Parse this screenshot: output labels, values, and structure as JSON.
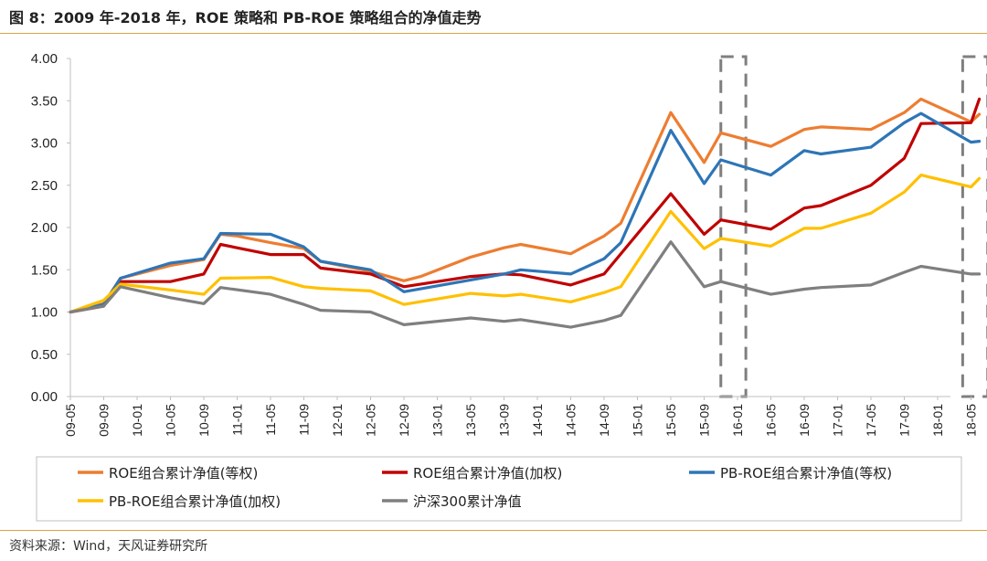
{
  "header": {
    "title": "图 8：2009 年-2018 年，ROE 策略和 PB-ROE 策略组合的净值走势"
  },
  "footer": {
    "source": "资料来源：Wind，天风证券研究所"
  },
  "chart_data": {
    "type": "line",
    "title": "",
    "xlabel": "",
    "ylabel": "",
    "ylim": [
      0,
      4
    ],
    "yticks": [
      "0.00",
      "0.50",
      "1.00",
      "1.50",
      "2.00",
      "2.50",
      "3.00",
      "3.50",
      "4.00"
    ],
    "grid": false,
    "legend_position": "bottom",
    "x_tick_labels": [
      "09-05",
      "09-09",
      "10-01",
      "10-05",
      "10-09",
      "11-01",
      "11-05",
      "11-09",
      "12-01",
      "12-05",
      "12-09",
      "13-01",
      "13-05",
      "13-09",
      "14-01",
      "14-05",
      "14-09",
      "15-01",
      "15-05",
      "15-09",
      "16-01",
      "16-05",
      "16-09",
      "17-01",
      "17-05",
      "17-09",
      "18-01",
      "18-05"
    ],
    "highlight_boxes": [
      {
        "from": "15-11",
        "to": "16-02"
      },
      {
        "from": "18-04",
        "to": "18-07"
      }
    ],
    "series": [
      {
        "name": "ROE组合累计净值(等权)",
        "color": "#ed7d31",
        "points": [
          [
            "09-05",
            1.0
          ],
          [
            "09-09",
            1.1
          ],
          [
            "09-11",
            1.4
          ],
          [
            "10-01",
            1.45
          ],
          [
            "10-05",
            1.55
          ],
          [
            "10-09",
            1.62
          ],
          [
            "10-11",
            1.92
          ],
          [
            "11-01",
            1.9
          ],
          [
            "11-05",
            1.82
          ],
          [
            "11-09",
            1.75
          ],
          [
            "11-11",
            1.6
          ],
          [
            "12-05",
            1.48
          ],
          [
            "12-09",
            1.37
          ],
          [
            "12-11",
            1.42
          ],
          [
            "13-05",
            1.65
          ],
          [
            "13-09",
            1.76
          ],
          [
            "13-11",
            1.8
          ],
          [
            "14-05",
            1.69
          ],
          [
            "14-09",
            1.9
          ],
          [
            "14-11",
            2.05
          ],
          [
            "15-05",
            3.36
          ],
          [
            "15-09",
            2.77
          ],
          [
            "15-11",
            3.12
          ],
          [
            "16-05",
            2.96
          ],
          [
            "16-09",
            3.16
          ],
          [
            "16-11",
            3.19
          ],
          [
            "17-05",
            3.16
          ],
          [
            "17-09",
            3.36
          ],
          [
            "17-11",
            3.52
          ],
          [
            "18-05",
            3.25
          ],
          [
            "18-06",
            3.34
          ]
        ]
      },
      {
        "name": "ROE组合累计净值(加权)",
        "color": "#c00000",
        "points": [
          [
            "09-05",
            1.0
          ],
          [
            "09-09",
            1.07
          ],
          [
            "09-11",
            1.36
          ],
          [
            "10-05",
            1.36
          ],
          [
            "10-09",
            1.45
          ],
          [
            "10-11",
            1.8
          ],
          [
            "11-05",
            1.68
          ],
          [
            "11-09",
            1.68
          ],
          [
            "11-11",
            1.52
          ],
          [
            "12-05",
            1.45
          ],
          [
            "12-09",
            1.3
          ],
          [
            "13-05",
            1.42
          ],
          [
            "13-09",
            1.45
          ],
          [
            "13-11",
            1.44
          ],
          [
            "14-05",
            1.32
          ],
          [
            "14-09",
            1.45
          ],
          [
            "15-05",
            2.4
          ],
          [
            "15-09",
            1.92
          ],
          [
            "15-11",
            2.09
          ],
          [
            "16-05",
            1.98
          ],
          [
            "16-09",
            2.23
          ],
          [
            "16-11",
            2.26
          ],
          [
            "17-05",
            2.5
          ],
          [
            "17-09",
            2.82
          ],
          [
            "17-11",
            3.23
          ],
          [
            "18-05",
            3.24
          ],
          [
            "18-06",
            3.52
          ]
        ]
      },
      {
        "name": "PB-ROE组合累计净值(等权)",
        "color": "#2e75b6",
        "points": [
          [
            "09-05",
            1.0
          ],
          [
            "09-09",
            1.09
          ],
          [
            "09-11",
            1.4
          ],
          [
            "10-05",
            1.58
          ],
          [
            "10-09",
            1.63
          ],
          [
            "10-11",
            1.93
          ],
          [
            "11-05",
            1.92
          ],
          [
            "11-09",
            1.77
          ],
          [
            "11-11",
            1.6
          ],
          [
            "12-05",
            1.5
          ],
          [
            "12-09",
            1.24
          ],
          [
            "13-05",
            1.38
          ],
          [
            "13-09",
            1.45
          ],
          [
            "13-11",
            1.5
          ],
          [
            "14-05",
            1.45
          ],
          [
            "14-09",
            1.63
          ],
          [
            "14-11",
            1.82
          ],
          [
            "15-05",
            3.15
          ],
          [
            "15-09",
            2.52
          ],
          [
            "15-11",
            2.8
          ],
          [
            "16-05",
            2.62
          ],
          [
            "16-09",
            2.91
          ],
          [
            "16-11",
            2.87
          ],
          [
            "17-05",
            2.95
          ],
          [
            "17-09",
            3.24
          ],
          [
            "17-11",
            3.35
          ],
          [
            "18-05",
            3.01
          ],
          [
            "18-06",
            3.02
          ]
        ]
      },
      {
        "name": "PB-ROE组合累计净值(加权)",
        "color": "#ffc000",
        "points": [
          [
            "09-05",
            1.0
          ],
          [
            "09-09",
            1.14
          ],
          [
            "09-11",
            1.33
          ],
          [
            "10-05",
            1.26
          ],
          [
            "10-09",
            1.21
          ],
          [
            "10-11",
            1.4
          ],
          [
            "11-05",
            1.41
          ],
          [
            "11-09",
            1.3
          ],
          [
            "11-11",
            1.28
          ],
          [
            "12-05",
            1.25
          ],
          [
            "12-09",
            1.09
          ],
          [
            "13-05",
            1.22
          ],
          [
            "13-09",
            1.19
          ],
          [
            "13-11",
            1.21
          ],
          [
            "14-05",
            1.12
          ],
          [
            "14-09",
            1.23
          ],
          [
            "14-11",
            1.3
          ],
          [
            "15-05",
            2.19
          ],
          [
            "15-09",
            1.75
          ],
          [
            "15-11",
            1.87
          ],
          [
            "16-05",
            1.78
          ],
          [
            "16-09",
            1.99
          ],
          [
            "16-11",
            1.99
          ],
          [
            "17-05",
            2.17
          ],
          [
            "17-09",
            2.42
          ],
          [
            "17-11",
            2.62
          ],
          [
            "18-05",
            2.48
          ],
          [
            "18-06",
            2.58
          ]
        ]
      },
      {
        "name": "沪深300累计净值",
        "color": "#7f7f7f",
        "points": [
          [
            "09-05",
            1.0
          ],
          [
            "09-09",
            1.07
          ],
          [
            "09-11",
            1.3
          ],
          [
            "10-05",
            1.17
          ],
          [
            "10-09",
            1.1
          ],
          [
            "10-11",
            1.29
          ],
          [
            "11-05",
            1.21
          ],
          [
            "11-09",
            1.09
          ],
          [
            "11-11",
            1.02
          ],
          [
            "12-05",
            1.0
          ],
          [
            "12-09",
            0.85
          ],
          [
            "13-05",
            0.93
          ],
          [
            "13-09",
            0.89
          ],
          [
            "13-11",
            0.91
          ],
          [
            "14-05",
            0.82
          ],
          [
            "14-09",
            0.9
          ],
          [
            "14-11",
            0.96
          ],
          [
            "15-05",
            1.83
          ],
          [
            "15-09",
            1.3
          ],
          [
            "15-11",
            1.36
          ],
          [
            "16-05",
            1.21
          ],
          [
            "16-09",
            1.27
          ],
          [
            "16-11",
            1.29
          ],
          [
            "17-05",
            1.32
          ],
          [
            "17-09",
            1.47
          ],
          [
            "17-11",
            1.54
          ],
          [
            "18-05",
            1.45
          ],
          [
            "18-06",
            1.45
          ]
        ]
      }
    ]
  }
}
